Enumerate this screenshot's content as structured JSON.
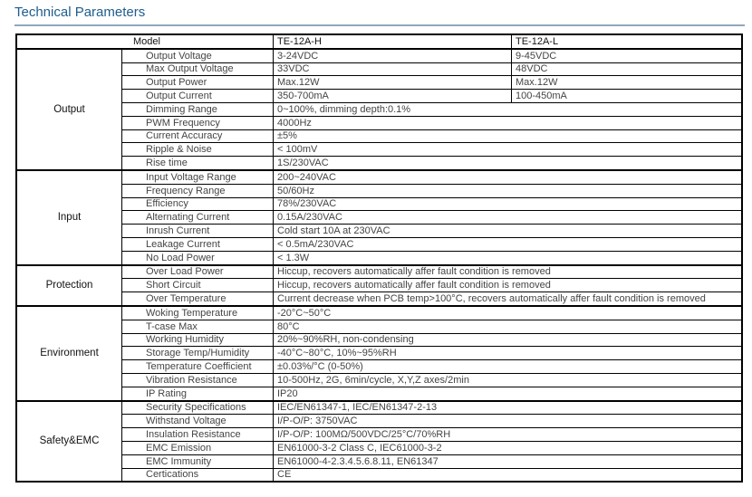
{
  "title": "Technical Parameters",
  "header": {
    "model": "Model",
    "h": "TE-12A-H",
    "l": "TE-12A-L"
  },
  "groups": [
    {
      "name": "Output",
      "rows": [
        [
          "Output Voltage",
          "3-24VDC",
          "9-45VDC"
        ],
        [
          "Max Output Voltage",
          "33VDC",
          "48VDC"
        ],
        [
          "Output Power",
          "Max.12W",
          "Max.12W"
        ],
        [
          "Output Current",
          "350-700mA",
          "100-450mA"
        ],
        [
          "Dimming Range",
          "0~100%, dimming depth:0.1%"
        ],
        [
          "PWM Frequency",
          "4000Hz"
        ],
        [
          "Current Accuracy",
          "±5%"
        ],
        [
          "Ripple & Noise",
          "< 100mV"
        ],
        [
          "Rise time",
          "1S/230VAC"
        ]
      ]
    },
    {
      "name": "Input",
      "rows": [
        [
          "Input Voltage Range",
          "200~240VAC"
        ],
        [
          "Frequency Range",
          "50/60Hz"
        ],
        [
          "Efficiency",
          "78%/230VAC"
        ],
        [
          "Alternating Current",
          "0.15A/230VAC"
        ],
        [
          "Inrush Current",
          "Cold start 10A at 230VAC"
        ],
        [
          "Leakage Current",
          "< 0.5mA/230VAC"
        ],
        [
          "No Load Power",
          "< 1.3W"
        ]
      ]
    },
    {
      "name": "Protection",
      "rows": [
        [
          "Over Load Power",
          "Hiccup, recovers automatically affer fault condition is removed"
        ],
        [
          "Short Circuit",
          "Hiccup, recovers automatically affer fault condition is removed"
        ],
        [
          "Over Temperature",
          "Current decrease when PCB temp>100°C, recovers automatically affer fault condition is removed"
        ]
      ]
    },
    {
      "name": "Environment",
      "rows": [
        [
          "Woking Temperature",
          "-20°C~50°C"
        ],
        [
          "T-case Max",
          "80°C"
        ],
        [
          "Working Humidity",
          "20%~90%RH, non-condensing"
        ],
        [
          "Storage Temp/Humidity",
          "-40°C~80°C, 10%~95%RH"
        ],
        [
          "Temperature Coefficient",
          "±0.03%/°C (0-50%)"
        ],
        [
          "Vibration Resistance",
          "10-500Hz, 2G, 6min/cycle,  X,Y,Z axes/2min"
        ],
        [
          "IP Rating",
          "IP20"
        ]
      ]
    },
    {
      "name": "Safety&EMC",
      "rows": [
        [
          "Security Specifications",
          "IEC/EN61347-1, IEC/EN61347-2-13"
        ],
        [
          "Withstand Voltage",
          "I/P-O/P: 3750VAC"
        ],
        [
          "Insulation Resistance",
          "I/P-O/P: 100MΩ/500VDC/25°C/70%RH"
        ],
        [
          "EMC Emission",
          "EN61000-3-2 Class C, IEC61000-3-2"
        ],
        [
          "EMC Immunity",
          "EN61000-4-2.3.4.5.6.8.11, EN61347"
        ],
        [
          "Certications",
          "CE"
        ]
      ]
    }
  ]
}
